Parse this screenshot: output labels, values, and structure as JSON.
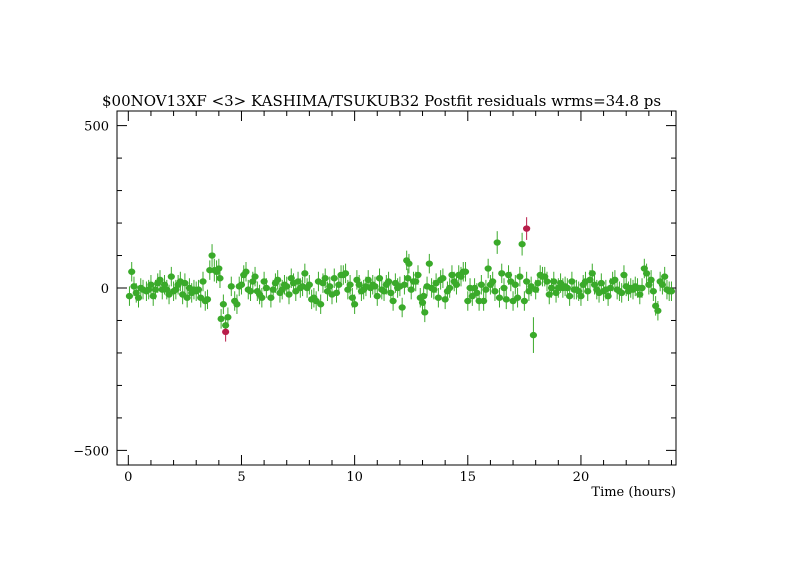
{
  "chart_data": {
    "type": "scatter",
    "title": "$00NOV13XF <3> KASHIMA/TSUKUB32 Postfit residuals wrms=34.8  ps",
    "xlabel": "Time (hours)",
    "ylabel": "",
    "xlim": [
      -0.5,
      24.2
    ],
    "ylim": [
      -545,
      545
    ],
    "x_ticks": [
      0,
      5,
      10,
      15,
      20
    ],
    "x_tick_labels": [
      "0",
      "5",
      "10",
      "15",
      "20"
    ],
    "y_ticks": [
      -500,
      0,
      500
    ],
    "y_tick_labels": [
      "−500",
      "0",
      "500"
    ],
    "grid": false,
    "error_bars": true,
    "colors": {
      "good": "#3aaa2a",
      "outlier": "#b81d4a",
      "frame": "#000000"
    },
    "series": [
      {
        "points": [
          [
            0.05,
            -25,
            30
          ],
          [
            0.15,
            50,
            30
          ],
          [
            0.25,
            5,
            30
          ],
          [
            0.35,
            -15,
            30
          ],
          [
            0.45,
            -30,
            30
          ],
          [
            0.55,
            0,
            30
          ],
          [
            0.65,
            -5,
            30
          ],
          [
            0.8,
            -10,
            30
          ],
          [
            0.9,
            -5,
            30
          ],
          [
            1.0,
            10,
            30
          ],
          [
            1.1,
            -25,
            30
          ],
          [
            1.2,
            -5,
            30
          ],
          [
            1.3,
            15,
            30
          ],
          [
            1.4,
            25,
            30
          ],
          [
            1.5,
            -5,
            30
          ],
          [
            1.6,
            10,
            30
          ],
          [
            1.7,
            -5,
            30
          ],
          [
            1.8,
            -20,
            30
          ],
          [
            1.9,
            35,
            30
          ],
          [
            2.0,
            -10,
            30
          ],
          [
            2.1,
            -5,
            30
          ],
          [
            2.2,
            10,
            30
          ],
          [
            2.3,
            20,
            30
          ],
          [
            2.4,
            -20,
            30
          ],
          [
            2.5,
            15,
            30
          ],
          [
            2.6,
            -30,
            30
          ],
          [
            2.7,
            0,
            30
          ],
          [
            2.8,
            -15,
            30
          ],
          [
            2.9,
            -5,
            30
          ],
          [
            3.0,
            -10,
            30
          ],
          [
            3.1,
            -5,
            30
          ],
          [
            3.2,
            -30,
            30
          ],
          [
            3.3,
            20,
            30
          ],
          [
            3.4,
            -40,
            30
          ],
          [
            3.5,
            -35,
            30
          ],
          [
            3.6,
            55,
            30
          ],
          [
            3.7,
            100,
            35
          ],
          [
            3.8,
            55,
            35
          ],
          [
            3.9,
            50,
            35
          ],
          [
            4.0,
            60,
            30
          ],
          [
            4.05,
            30,
            30
          ],
          [
            4.1,
            -95,
            30
          ],
          [
            4.2,
            -50,
            30
          ],
          [
            4.3,
            -115,
            30
          ],
          [
            4.4,
            -90,
            30
          ],
          [
            4.55,
            5,
            30
          ],
          [
            4.7,
            -40,
            30
          ],
          [
            4.8,
            -50,
            30
          ],
          [
            4.9,
            5,
            30
          ],
          [
            5.0,
            10,
            30
          ],
          [
            5.1,
            40,
            30
          ],
          [
            5.2,
            50,
            30
          ],
          [
            5.3,
            -5,
            30
          ],
          [
            5.4,
            -10,
            30
          ],
          [
            5.5,
            20,
            30
          ],
          [
            5.6,
            35,
            30
          ],
          [
            5.7,
            -10,
            30
          ],
          [
            5.8,
            -20,
            30
          ],
          [
            5.9,
            -30,
            30
          ],
          [
            6.0,
            20,
            30
          ],
          [
            6.1,
            0,
            30
          ],
          [
            6.3,
            -30,
            30
          ],
          [
            6.4,
            -5,
            30
          ],
          [
            6.5,
            15,
            30
          ],
          [
            6.6,
            25,
            30
          ],
          [
            6.7,
            -15,
            30
          ],
          [
            6.8,
            -5,
            30
          ],
          [
            6.9,
            10,
            30
          ],
          [
            7.0,
            5,
            30
          ],
          [
            7.1,
            -20,
            30
          ],
          [
            7.2,
            30,
            30
          ],
          [
            7.3,
            15,
            30
          ],
          [
            7.4,
            -10,
            30
          ],
          [
            7.5,
            20,
            30
          ],
          [
            7.6,
            0,
            30
          ],
          [
            7.7,
            5,
            30
          ],
          [
            7.8,
            45,
            30
          ],
          [
            7.9,
            0,
            30
          ],
          [
            8.0,
            10,
            30
          ],
          [
            8.1,
            -35,
            30
          ],
          [
            8.2,
            -30,
            30
          ],
          [
            8.3,
            -40,
            30
          ],
          [
            8.4,
            20,
            30
          ],
          [
            8.5,
            -50,
            30
          ],
          [
            8.6,
            15,
            30
          ],
          [
            8.7,
            30,
            30
          ],
          [
            8.8,
            -10,
            30
          ],
          [
            8.9,
            5,
            30
          ],
          [
            9.0,
            -20,
            30
          ],
          [
            9.1,
            30,
            30
          ],
          [
            9.2,
            -15,
            30
          ],
          [
            9.3,
            10,
            30
          ],
          [
            9.4,
            40,
            30
          ],
          [
            9.5,
            40,
            30
          ],
          [
            9.6,
            45,
            30
          ],
          [
            9.7,
            -5,
            30
          ],
          [
            9.8,
            10,
            30
          ],
          [
            9.9,
            -30,
            30
          ],
          [
            10.0,
            -50,
            30
          ],
          [
            10.1,
            25,
            30
          ],
          [
            10.2,
            10,
            30
          ],
          [
            10.3,
            -10,
            30
          ],
          [
            10.4,
            -5,
            30
          ],
          [
            10.5,
            5,
            30
          ],
          [
            10.6,
            25,
            30
          ],
          [
            10.7,
            0,
            30
          ],
          [
            10.8,
            10,
            30
          ],
          [
            10.9,
            5,
            30
          ],
          [
            11.0,
            -25,
            30
          ],
          [
            11.1,
            30,
            30
          ],
          [
            11.2,
            -5,
            30
          ],
          [
            11.3,
            -10,
            30
          ],
          [
            11.4,
            10,
            30
          ],
          [
            11.5,
            20,
            30
          ],
          [
            11.6,
            -15,
            30
          ],
          [
            11.7,
            -40,
            30
          ],
          [
            11.8,
            15,
            30
          ],
          [
            11.9,
            0,
            30
          ],
          [
            12.0,
            5,
            30
          ],
          [
            12.1,
            -60,
            30
          ],
          [
            12.2,
            10,
            30
          ],
          [
            12.3,
            85,
            30
          ],
          [
            12.35,
            30,
            30
          ],
          [
            12.4,
            75,
            30
          ],
          [
            12.5,
            -5,
            30
          ],
          [
            12.6,
            20,
            30
          ],
          [
            12.7,
            20,
            30
          ],
          [
            12.8,
            40,
            30
          ],
          [
            12.9,
            -30,
            30
          ],
          [
            13.0,
            -45,
            30
          ],
          [
            13.05,
            -25,
            30
          ],
          [
            13.1,
            -75,
            30
          ],
          [
            13.2,
            5,
            30
          ],
          [
            13.3,
            75,
            30
          ],
          [
            13.4,
            0,
            30
          ],
          [
            13.5,
            -5,
            30
          ],
          [
            13.6,
            15,
            30
          ],
          [
            13.7,
            -30,
            30
          ],
          [
            13.8,
            25,
            30
          ],
          [
            13.9,
            30,
            30
          ],
          [
            14.0,
            -35,
            30
          ],
          [
            14.1,
            -10,
            30
          ],
          [
            14.2,
            0,
            30
          ],
          [
            14.3,
            40,
            30
          ],
          [
            14.4,
            20,
            30
          ],
          [
            14.5,
            10,
            30
          ],
          [
            14.6,
            40,
            30
          ],
          [
            14.7,
            35,
            30
          ],
          [
            14.8,
            50,
            30
          ],
          [
            14.9,
            50,
            30
          ],
          [
            15.0,
            -40,
            30
          ],
          [
            15.1,
            0,
            30
          ],
          [
            15.2,
            -25,
            30
          ],
          [
            15.3,
            0,
            30
          ],
          [
            15.4,
            -15,
            30
          ],
          [
            15.5,
            -40,
            30
          ],
          [
            15.6,
            10,
            30
          ],
          [
            15.7,
            -40,
            30
          ],
          [
            15.8,
            -5,
            30
          ],
          [
            15.9,
            60,
            30
          ],
          [
            16.0,
            10,
            30
          ],
          [
            16.1,
            20,
            30
          ],
          [
            16.2,
            -10,
            30
          ],
          [
            16.3,
            140,
            35
          ],
          [
            16.4,
            -30,
            30
          ],
          [
            16.5,
            45,
            30
          ],
          [
            16.6,
            0,
            30
          ],
          [
            16.7,
            -35,
            30
          ],
          [
            16.8,
            40,
            30
          ],
          [
            16.9,
            20,
            30
          ],
          [
            17.0,
            -40,
            30
          ],
          [
            17.1,
            10,
            30
          ],
          [
            17.2,
            -30,
            30
          ],
          [
            17.3,
            35,
            30
          ],
          [
            17.4,
            135,
            35
          ],
          [
            17.5,
            -40,
            30
          ],
          [
            17.6,
            20,
            30
          ],
          [
            17.7,
            -10,
            30
          ],
          [
            17.8,
            5,
            30
          ],
          [
            17.9,
            -145,
            55
          ],
          [
            18.0,
            -5,
            30
          ],
          [
            18.1,
            15,
            30
          ],
          [
            18.2,
            40,
            30
          ],
          [
            18.3,
            35,
            30
          ],
          [
            18.4,
            35,
            30
          ],
          [
            18.5,
            20,
            30
          ],
          [
            18.6,
            -20,
            30
          ],
          [
            18.7,
            0,
            30
          ],
          [
            18.8,
            20,
            30
          ],
          [
            18.9,
            -15,
            30
          ],
          [
            19.0,
            0,
            30
          ],
          [
            19.1,
            15,
            30
          ],
          [
            19.2,
            0,
            30
          ],
          [
            19.3,
            5,
            30
          ],
          [
            19.4,
            0,
            30
          ],
          [
            19.5,
            -25,
            30
          ],
          [
            19.6,
            20,
            30
          ],
          [
            19.7,
            -5,
            30
          ],
          [
            19.8,
            -5,
            30
          ],
          [
            19.9,
            -10,
            30
          ],
          [
            20.0,
            -25,
            30
          ],
          [
            20.1,
            10,
            30
          ],
          [
            20.2,
            20,
            30
          ],
          [
            20.3,
            -10,
            30
          ],
          [
            20.4,
            25,
            30
          ],
          [
            20.5,
            45,
            30
          ],
          [
            20.6,
            10,
            30
          ],
          [
            20.7,
            -5,
            30
          ],
          [
            20.8,
            -15,
            30
          ],
          [
            20.9,
            15,
            30
          ],
          [
            21.0,
            -10,
            30
          ],
          [
            21.1,
            -5,
            30
          ],
          [
            21.2,
            -25,
            30
          ],
          [
            21.3,
            0,
            30
          ],
          [
            21.4,
            20,
            30
          ],
          [
            21.5,
            25,
            30
          ],
          [
            21.6,
            -5,
            30
          ],
          [
            21.7,
            -10,
            30
          ],
          [
            21.8,
            -15,
            30
          ],
          [
            21.9,
            40,
            30
          ],
          [
            22.0,
            5,
            30
          ],
          [
            22.1,
            -10,
            30
          ],
          [
            22.2,
            0,
            30
          ],
          [
            22.3,
            -5,
            30
          ],
          [
            22.4,
            5,
            30
          ],
          [
            22.5,
            0,
            30
          ],
          [
            22.6,
            -20,
            30
          ],
          [
            22.7,
            0,
            30
          ],
          [
            22.8,
            60,
            30
          ],
          [
            22.9,
            45,
            30
          ],
          [
            23.0,
            10,
            30
          ],
          [
            23.1,
            25,
            30
          ],
          [
            23.2,
            -10,
            30
          ],
          [
            23.3,
            -55,
            30
          ],
          [
            23.4,
            -70,
            30
          ],
          [
            23.5,
            20,
            30
          ],
          [
            23.6,
            10,
            30
          ],
          [
            23.7,
            35,
            30
          ],
          [
            23.8,
            -5,
            30
          ],
          [
            23.9,
            -10,
            30
          ],
          [
            24.0,
            -10,
            30
          ]
        ]
      },
      {
        "points": [
          [
            4.3,
            -135,
            30
          ],
          [
            17.6,
            183,
            35
          ]
        ]
      }
    ]
  }
}
